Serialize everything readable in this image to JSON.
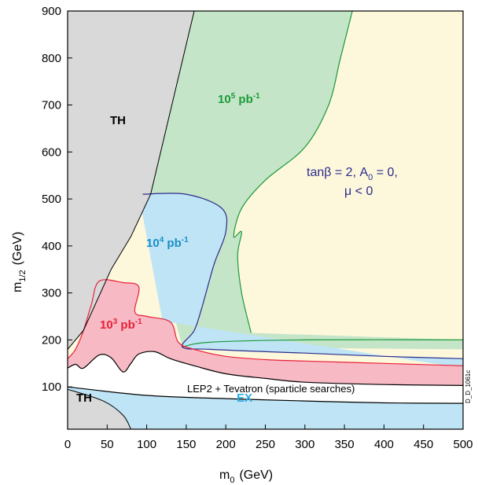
{
  "chart_data": {
    "type": "area",
    "x_axis": {
      "label_base": "m",
      "label_sub": "0",
      "label_unit": "(GeV)",
      "range": [
        0,
        500
      ],
      "ticks": [
        0,
        50,
        100,
        150,
        200,
        250,
        300,
        350,
        400,
        450,
        500
      ]
    },
    "y_axis": {
      "label_base": "m",
      "label_sub": "1/2",
      "label_unit": "(GeV)",
      "range": [
        10,
        900
      ],
      "ticks": [
        100,
        200,
        300,
        400,
        500,
        600,
        700,
        800,
        900
      ]
    },
    "grid": false,
    "colors": {
      "th_fill": "#d9d9d9",
      "ex_fill": "#bfe4f5",
      "lep_fill": "#ffffff",
      "pb3_fill": "#f7b9c4",
      "pb3_line": "#e8203a",
      "pb4_fill": "#bfe4f5",
      "pb4_line": "#2b2b8c",
      "pb5_fill": "#c5e5c8",
      "pb5_line": "#1a9a3a",
      "yellow_fill": "#fdf8dc",
      "pb3_text": "#e8203a",
      "pb4_text": "#1a8fc8",
      "pb5_text": "#1a9a3a",
      "ex_text": "#29aee6"
    },
    "regions": [
      {
        "key": "th_upper",
        "label": "TH",
        "boundary": [
          [
            0,
            900
          ],
          [
            160,
            900
          ],
          [
            105,
            510
          ],
          [
            80,
            420
          ],
          [
            55,
            350
          ],
          [
            20,
            220
          ],
          [
            0,
            180
          ]
        ]
      },
      {
        "key": "th_lower",
        "label": "TH",
        "boundary": [
          [
            0,
            10
          ],
          [
            0,
            95
          ],
          [
            45,
            70
          ],
          [
            70,
            40
          ],
          [
            80,
            10
          ]
        ]
      },
      {
        "key": "ex",
        "label": "EX",
        "lower_curve": [
          [
            0,
            95
          ],
          [
            45,
            70
          ],
          [
            70,
            40
          ],
          [
            80,
            10
          ]
        ],
        "upper_curve": [
          [
            0,
            100
          ],
          [
            100,
            82
          ],
          [
            200,
            75
          ],
          [
            300,
            70
          ],
          [
            400,
            66
          ],
          [
            500,
            65
          ]
        ]
      },
      {
        "key": "lep_tevatron",
        "label": "LEP2 + Tevatron (sparticle searches)",
        "upper_curve": [
          [
            0,
            140
          ],
          [
            10,
            148
          ],
          [
            20,
            140
          ],
          [
            40,
            168
          ],
          [
            55,
            162
          ],
          [
            70,
            132
          ],
          [
            80,
            150
          ],
          [
            90,
            170
          ],
          [
            110,
            175
          ],
          [
            130,
            160
          ],
          [
            160,
            145
          ],
          [
            200,
            128
          ],
          [
            250,
            118
          ],
          [
            300,
            110
          ],
          [
            400,
            105
          ],
          [
            500,
            103
          ]
        ]
      },
      {
        "key": "pb3",
        "label_base": "10",
        "label_exp": "3",
        "label_unit": " pb",
        "label_unit_exp": "-1",
        "boundary": [
          [
            0,
            160
          ],
          [
            10,
            180
          ],
          [
            20,
            220
          ],
          [
            30,
            275
          ],
          [
            40,
            325
          ],
          [
            70,
            322
          ],
          [
            90,
            313
          ],
          [
            85,
            260
          ],
          [
            100,
            250
          ],
          [
            130,
            238
          ],
          [
            140,
            195
          ],
          [
            160,
            180
          ],
          [
            200,
            165
          ],
          [
            250,
            158
          ],
          [
            300,
            155
          ],
          [
            400,
            150
          ],
          [
            500,
            145
          ]
        ]
      },
      {
        "key": "pb4",
        "label_base": "10",
        "label_exp": "4",
        "label_unit": " pb",
        "label_unit_exp": "-1",
        "boundary": [
          [
            95,
            510
          ],
          [
            150,
            510
          ],
          [
            195,
            480
          ],
          [
            200,
            430
          ],
          [
            185,
            360
          ],
          [
            170,
            270
          ],
          [
            160,
            220
          ],
          [
            145,
            185
          ],
          [
            180,
            180
          ],
          [
            250,
            175
          ],
          [
            300,
            172
          ],
          [
            400,
            165
          ],
          [
            500,
            160
          ]
        ]
      },
      {
        "key": "pb5",
        "label_base": "10",
        "label_exp": "5",
        "label_unit": " pb",
        "label_unit_exp": "-1",
        "boundary": [
          [
            160,
            900
          ],
          [
            270,
            900
          ],
          [
            255,
            820
          ],
          [
            220,
            700
          ],
          [
            190,
            600
          ],
          [
            160,
            510
          ],
          [
            195,
            480
          ],
          [
            200,
            430
          ],
          [
            185,
            360
          ],
          [
            170,
            270
          ],
          [
            160,
            220
          ],
          [
            145,
            185
          ],
          [
            180,
            195
          ],
          [
            300,
            200
          ],
          [
            500,
            200
          ]
        ]
      },
      {
        "key": "allowed",
        "label_line1": "tanβ = 2, A₀ = 0,",
        "label_line2": "μ < 0",
        "outer_boundary": [
          [
            270,
            900
          ],
          [
            500,
            900
          ],
          [
            500,
            200
          ]
        ],
        "inner_curve": [
          [
            232,
            215
          ],
          [
            220,
            300
          ],
          [
            215,
            380
          ],
          [
            220,
            430
          ],
          [
            210,
            420
          ],
          [
            220,
            480
          ],
          [
            250,
            540
          ],
          [
            300,
            610
          ],
          [
            330,
            700
          ],
          [
            345,
            800
          ],
          [
            360,
            900
          ]
        ]
      }
    ],
    "annotations": {
      "pb3_label": {
        "text_base": "10",
        "text_exp": "3",
        "text_unit": " pb",
        "text_unit_exp": "-1"
      },
      "pb4_label": {
        "text_base": "10",
        "text_exp": "4",
        "text_unit": " pb",
        "text_unit_exp": "-1"
      },
      "pb5_label": {
        "text_base": "10",
        "text_exp": "5",
        "text_unit": " pb",
        "text_unit_exp": "-1"
      },
      "params_line1": "tanβ = 2, A",
      "params_sub": "0",
      "params_line1_tail": " = 0,",
      "params_line2": "μ < 0",
      "lep_label": "LEP2 + Tevatron (sparticle searches)",
      "ex_label": "EX",
      "th_upper_label": "TH",
      "th_lower_label": "TH",
      "stamp": "D_D_1061c"
    }
  }
}
